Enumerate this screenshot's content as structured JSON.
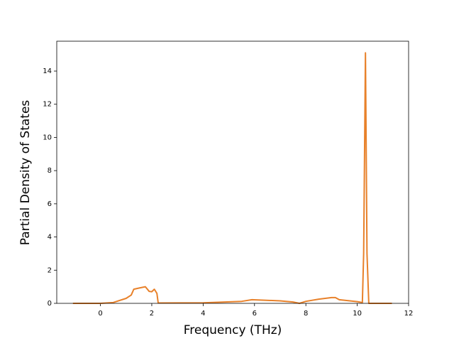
{
  "chart_data": {
    "type": "line",
    "x_label": "Frequency (THz)",
    "y_label": "Partial Density of States",
    "x": [
      -1.07,
      0,
      0.5,
      1.0,
      1.2,
      1.3,
      1.5,
      1.75,
      1.9,
      2.0,
      2.1,
      2.2,
      2.25,
      4.0,
      5.5,
      5.9,
      7.0,
      7.5,
      7.75,
      8.0,
      8.5,
      9.0,
      9.15,
      9.3,
      10.0,
      10.2,
      10.25,
      10.32,
      10.38,
      10.45,
      11.35
    ],
    "series": [
      {
        "color": "#e8812a",
        "values": [
          0,
          0,
          0.05,
          0.3,
          0.5,
          0.85,
          0.92,
          1.0,
          0.72,
          0.7,
          0.85,
          0.6,
          0.02,
          0.03,
          0.12,
          0.22,
          0.15,
          0.08,
          0,
          0.12,
          0.25,
          0.35,
          0.35,
          0.22,
          0.1,
          0.05,
          3,
          15.1,
          3,
          0,
          0
        ]
      }
    ],
    "xlim": [
      -1.7,
      12
    ],
    "ylim": [
      0,
      15.8
    ],
    "xticks": [
      0,
      2,
      4,
      6,
      8,
      10,
      12
    ],
    "yticks": [
      0,
      2,
      4,
      6,
      8,
      10,
      12,
      14
    ]
  }
}
